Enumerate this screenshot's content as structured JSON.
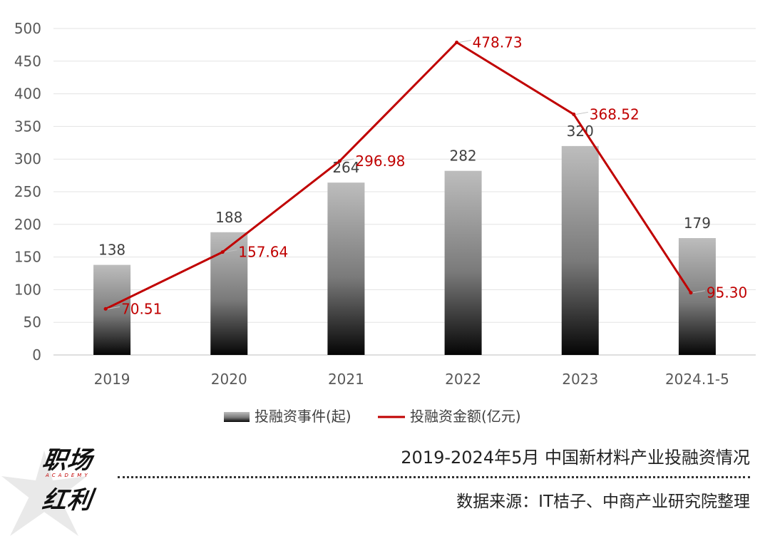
{
  "chart_data": {
    "type": "bar",
    "categories": [
      "2019",
      "2020",
      "2021",
      "2022",
      "2023",
      "2024.1-5"
    ],
    "ylim": [
      0,
      500
    ],
    "yticks": [
      0,
      50,
      100,
      150,
      200,
      250,
      300,
      350,
      400,
      450,
      500
    ],
    "grid": true,
    "legend_position": "bottom",
    "series": [
      {
        "name": "投融资事件(起)",
        "kind": "bar",
        "values": [
          138,
          188,
          264,
          282,
          320,
          179
        ],
        "labels": [
          "138",
          "188",
          "264",
          "282",
          "320",
          "179"
        ],
        "color": "#7f7f7f"
      },
      {
        "name": "投融资金额(亿元)",
        "kind": "line",
        "values": [
          70.51,
          157.64,
          296.98,
          478.73,
          368.52,
          95.3
        ],
        "labels": [
          "70.51",
          "157.64",
          "296.98",
          "478.73",
          "368.52",
          "95.30"
        ],
        "color": "#c00000"
      }
    ]
  },
  "footer": {
    "logo_line1": "职场",
    "logo_tag": "ACADEMY",
    "logo_line2": "红利",
    "title": "2019-2024年5月 中国新材料产业投融资情况",
    "source": "数据来源：IT桔子、中商产业研究院整理"
  }
}
